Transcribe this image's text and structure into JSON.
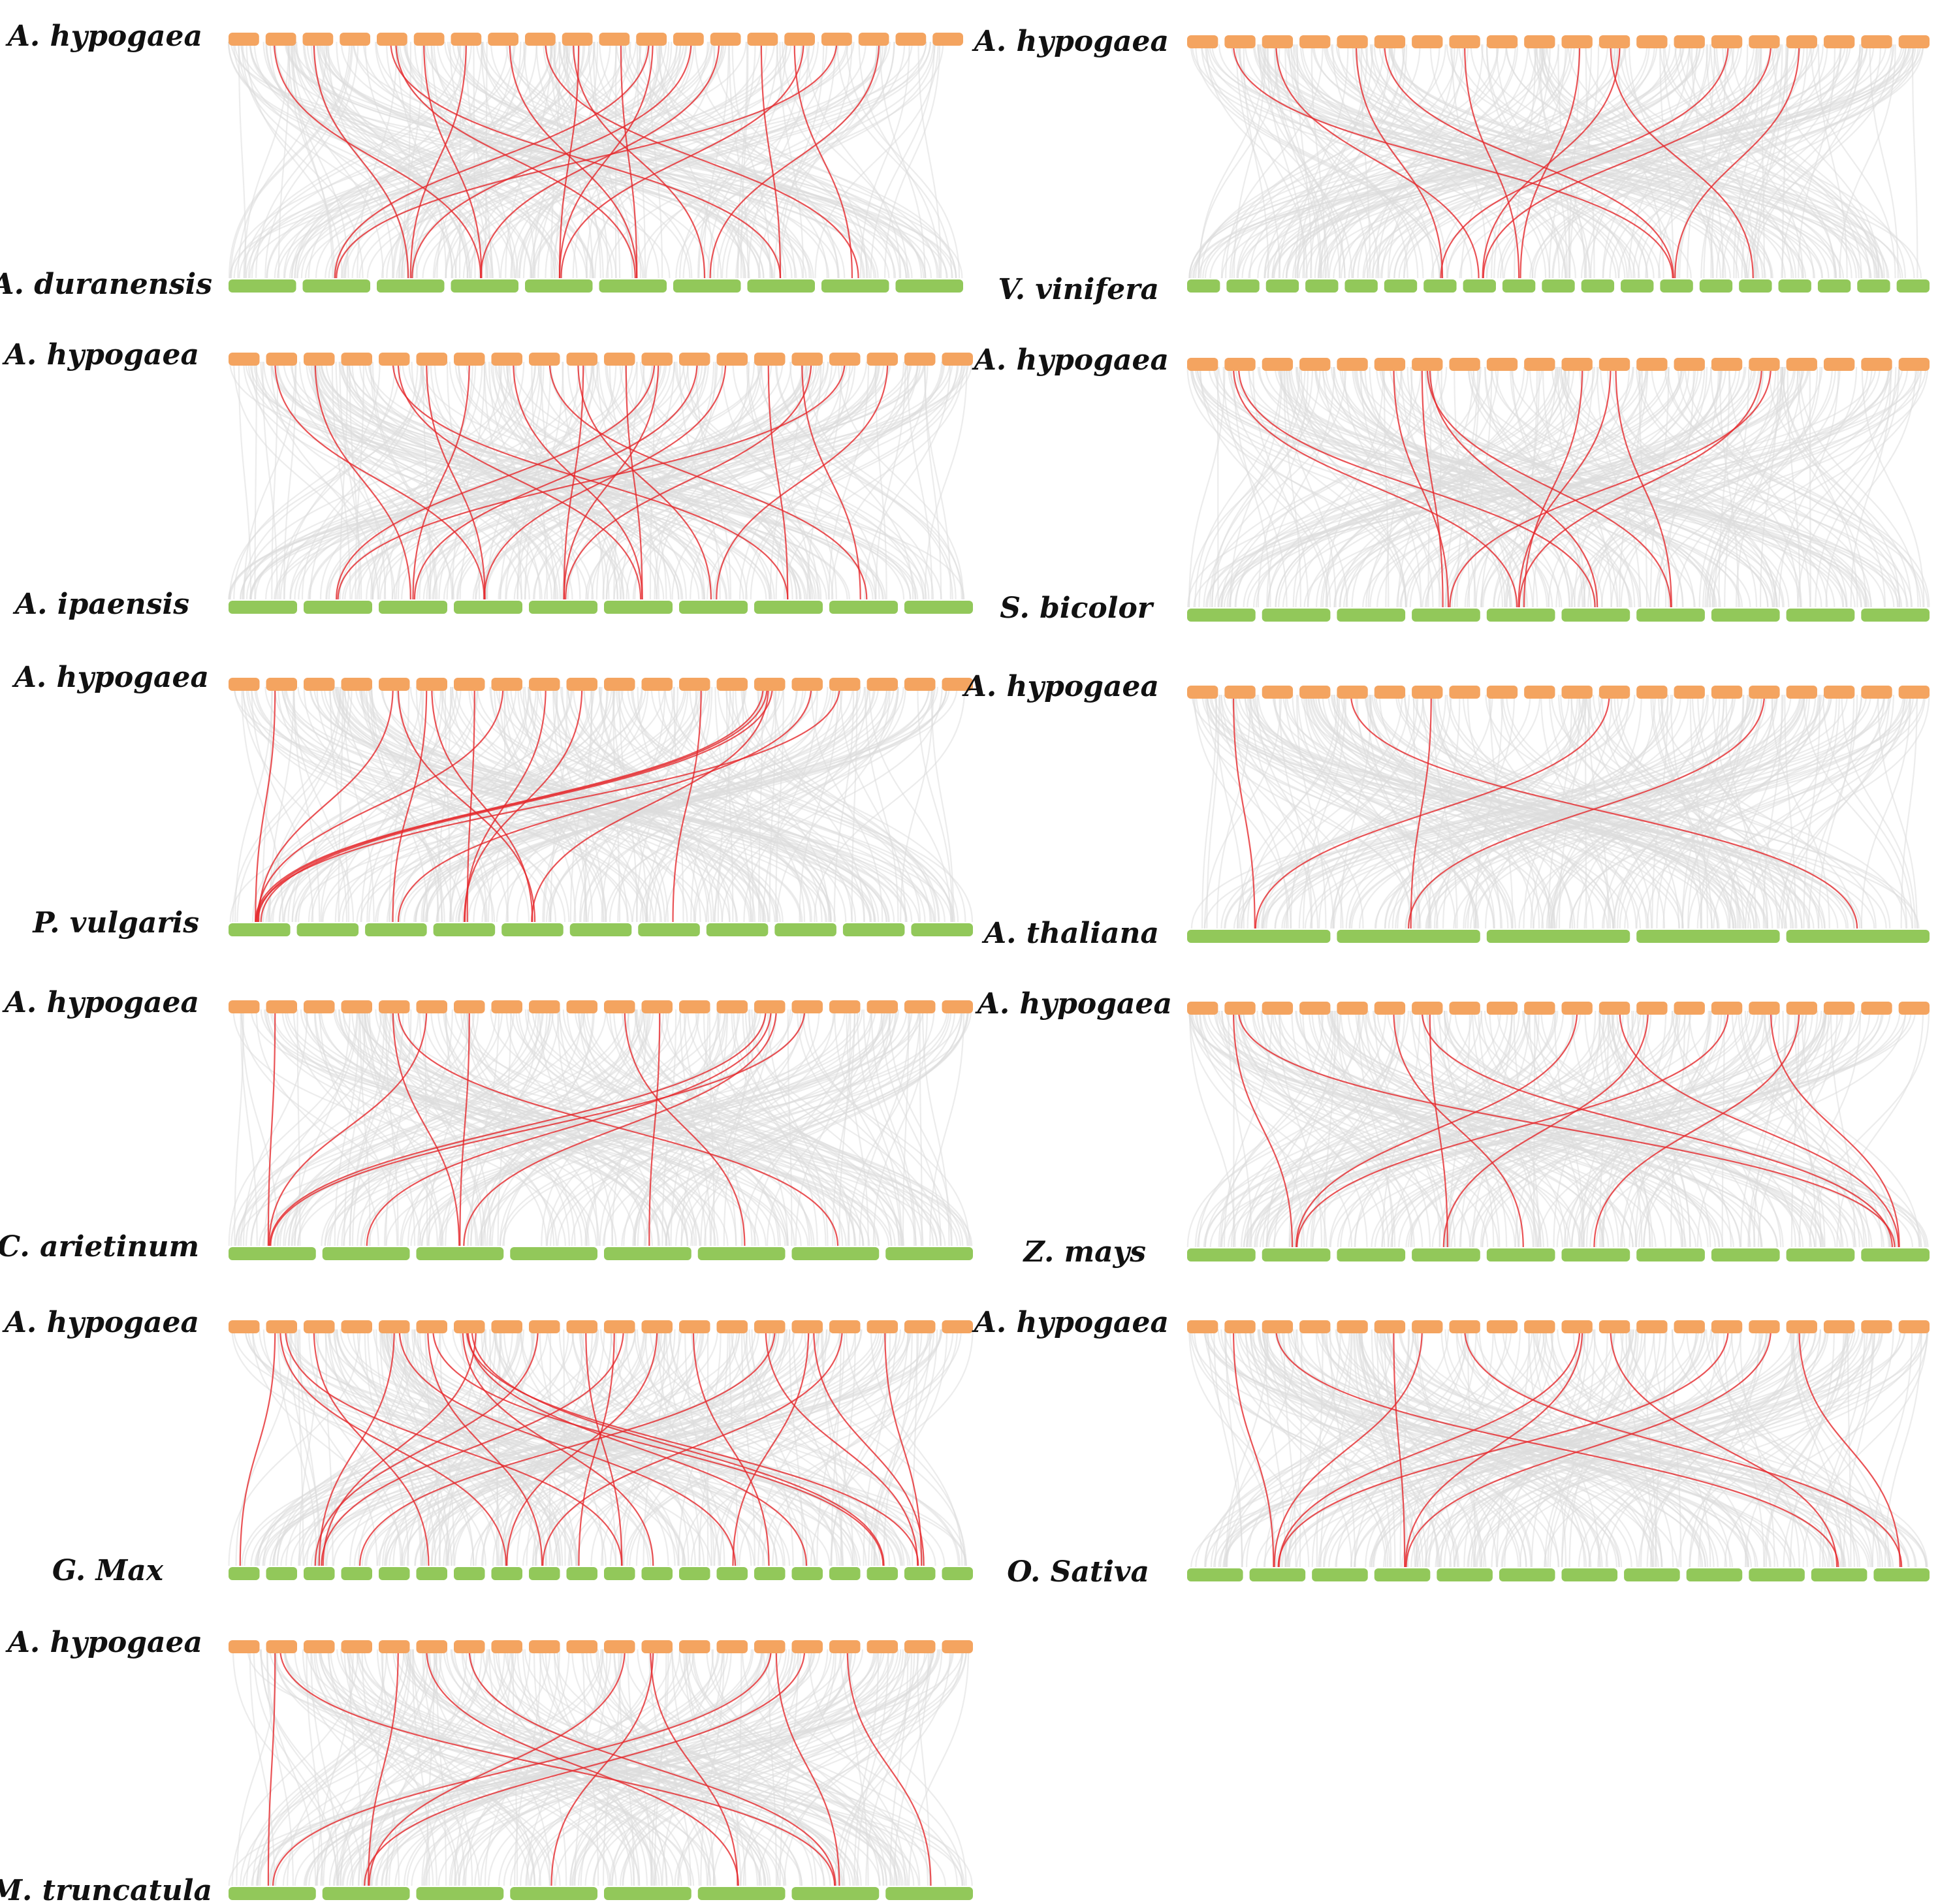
{
  "colors": {
    "query_chromosome": "#f4a460",
    "target_chromosome": "#92c85a",
    "background_link": "#dcdcdc",
    "highlight_link": "#e5282c",
    "label": "#111111"
  },
  "panels": [
    {
      "top_species": "A. hypogaea",
      "bottom_species": "A. duranensis",
      "top_chromosomes": 20,
      "bottom_chromosomes": 10,
      "links": [
        [
          2,
          4
        ],
        [
          5,
          8
        ],
        [
          5,
          6
        ],
        [
          6,
          4
        ],
        [
          7,
          3
        ],
        [
          9,
          9
        ],
        [
          10,
          7
        ],
        [
          10,
          5
        ],
        [
          11,
          6
        ],
        [
          12,
          2
        ],
        [
          13,
          3
        ],
        [
          14,
          4
        ],
        [
          15,
          8
        ],
        [
          16,
          5
        ],
        [
          16,
          9
        ],
        [
          17,
          2
        ],
        [
          18,
          7
        ],
        [
          3,
          3
        ],
        [
          12,
          5
        ],
        [
          8,
          6
        ]
      ]
    },
    {
      "top_species": "A. hypogaea",
      "bottom_species": "V. vinifera",
      "top_chromosomes": 20,
      "bottom_chromosomes": 19,
      "links": [
        [
          2,
          13
        ],
        [
          3,
          8
        ],
        [
          5,
          7
        ],
        [
          6,
          13
        ],
        [
          8,
          9
        ],
        [
          12,
          8
        ],
        [
          12,
          15
        ],
        [
          15,
          7
        ],
        [
          16,
          8
        ],
        [
          17,
          13
        ],
        [
          11,
          9
        ]
      ]
    },
    {
      "top_species": "A. hypogaea",
      "bottom_species": "A. ipaensis",
      "top_chromosomes": 20,
      "bottom_chromosomes": 10,
      "links": [
        [
          2,
          4
        ],
        [
          5,
          8
        ],
        [
          5,
          6
        ],
        [
          6,
          4
        ],
        [
          7,
          3
        ],
        [
          9,
          9
        ],
        [
          10,
          7
        ],
        [
          10,
          5
        ],
        [
          11,
          6
        ],
        [
          12,
          2
        ],
        [
          13,
          3
        ],
        [
          14,
          4
        ],
        [
          15,
          8
        ],
        [
          16,
          5
        ],
        [
          16,
          9
        ],
        [
          17,
          2
        ],
        [
          18,
          7
        ],
        [
          3,
          3
        ],
        [
          12,
          5
        ],
        [
          8,
          6
        ]
      ]
    },
    {
      "top_species": "A. hypogaea",
      "bottom_species": "S. bicolor",
      "top_chromosomes": 20,
      "bottom_chromosomes": 10,
      "links": [
        [
          2,
          5
        ],
        [
          2,
          6
        ],
        [
          6,
          4
        ],
        [
          7,
          4
        ],
        [
          7,
          7
        ],
        [
          11,
          5
        ],
        [
          12,
          5
        ],
        [
          12,
          7
        ],
        [
          16,
          4
        ],
        [
          16,
          5
        ],
        [
          7,
          6
        ]
      ]
    },
    {
      "top_species": "A. hypogaea",
      "bottom_species": "P. vulgaris",
      "top_chromosomes": 20,
      "bottom_chromosomes": 11,
      "links": [
        [
          2,
          1
        ],
        [
          5,
          1
        ],
        [
          5,
          5
        ],
        [
          6,
          3
        ],
        [
          6,
          5
        ],
        [
          7,
          4
        ],
        [
          8,
          1
        ],
        [
          9,
          4
        ],
        [
          13,
          7
        ],
        [
          15,
          1
        ],
        [
          15,
          1
        ],
        [
          15,
          1
        ],
        [
          15,
          5
        ],
        [
          16,
          3
        ],
        [
          17,
          1
        ],
        [
          10,
          4
        ]
      ]
    },
    {
      "top_species": "A. hypogaea",
      "bottom_species": "A. thaliana",
      "top_chromosomes": 20,
      "bottom_chromosomes": 5,
      "links": [
        [
          2,
          1
        ],
        [
          5,
          5
        ],
        [
          7,
          2
        ],
        [
          12,
          1
        ],
        [
          16,
          2
        ]
      ]
    },
    {
      "top_species": "A. hypogaea",
      "bottom_species": "C. arietinum",
      "top_chromosomes": 20,
      "bottom_chromosomes": 8,
      "links": [
        [
          2,
          1
        ],
        [
          5,
          3
        ],
        [
          5,
          7
        ],
        [
          6,
          1
        ],
        [
          7,
          3
        ],
        [
          11,
          6
        ],
        [
          15,
          1
        ],
        [
          15,
          2
        ],
        [
          15,
          3
        ],
        [
          16,
          1
        ],
        [
          12,
          5
        ]
      ]
    },
    {
      "top_species": "A. hypogaea",
      "bottom_species": "Z. mays",
      "top_chromosomes": 20,
      "bottom_chromosomes": 10,
      "links": [
        [
          2,
          2
        ],
        [
          2,
          10
        ],
        [
          6,
          5
        ],
        [
          7,
          10
        ],
        [
          11,
          2
        ],
        [
          12,
          10
        ],
        [
          13,
          4
        ],
        [
          15,
          2
        ],
        [
          16,
          10
        ],
        [
          17,
          6
        ],
        [
          7,
          4
        ]
      ]
    },
    {
      "top_species": "A. hypogaea",
      "bottom_species": "G. Max",
      "top_chromosomes": 20,
      "bottom_chromosomes": 20,
      "links": [
        [
          2,
          1
        ],
        [
          2,
          8
        ],
        [
          2,
          11
        ],
        [
          3,
          6
        ],
        [
          5,
          3
        ],
        [
          5,
          14
        ],
        [
          6,
          9
        ],
        [
          6,
          18
        ],
        [
          7,
          3
        ],
        [
          7,
          19
        ],
        [
          7,
          18
        ],
        [
          7,
          12
        ],
        [
          7,
          16
        ],
        [
          11,
          3
        ],
        [
          11,
          10
        ],
        [
          12,
          8
        ],
        [
          15,
          4
        ],
        [
          15,
          19
        ],
        [
          16,
          14
        ],
        [
          16,
          19
        ],
        [
          17,
          9
        ],
        [
          18,
          19
        ],
        [
          9,
          3
        ],
        [
          13,
          15
        ],
        [
          10,
          11
        ]
      ]
    },
    {
      "top_species": "A. hypogaea",
      "bottom_species": "O. Sativa",
      "top_chromosomes": 20,
      "bottom_chromosomes": 12,
      "links": [
        [
          2,
          2
        ],
        [
          3,
          11
        ],
        [
          6,
          4
        ],
        [
          7,
          2
        ],
        [
          8,
          12
        ],
        [
          11,
          4
        ],
        [
          12,
          11
        ],
        [
          15,
          2
        ],
        [
          16,
          4
        ],
        [
          17,
          12
        ],
        [
          11,
          2
        ]
      ]
    },
    {
      "top_species": "A. hypogaea",
      "bottom_species": "M. truncatula",
      "top_chromosomes": 20,
      "bottom_chromosomes": 8,
      "links": [
        [
          2,
          1
        ],
        [
          2,
          7
        ],
        [
          5,
          2
        ],
        [
          6,
          6
        ],
        [
          7,
          7
        ],
        [
          11,
          2
        ],
        [
          12,
          4
        ],
        [
          15,
          1
        ],
        [
          15,
          7
        ],
        [
          16,
          2
        ],
        [
          17,
          8
        ],
        [
          12,
          6
        ]
      ]
    }
  ]
}
